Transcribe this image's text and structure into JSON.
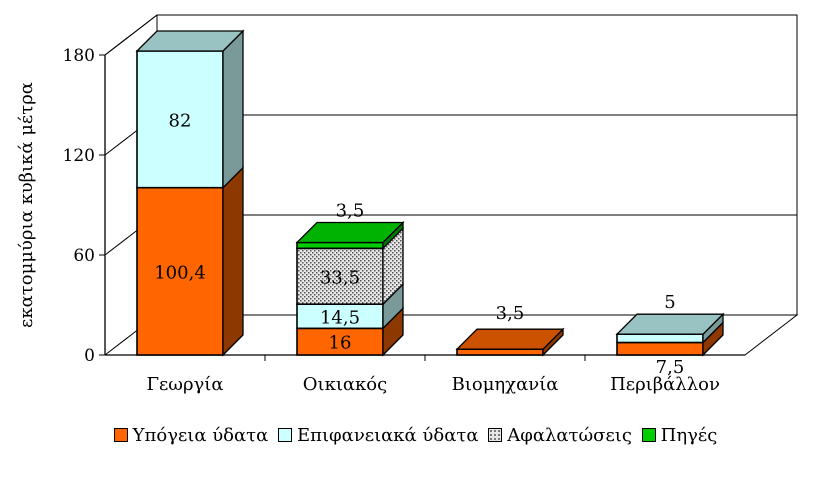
{
  "chart_data": {
    "type": "bar",
    "stacked": true,
    "style": "3d",
    "title": "",
    "xlabel": "",
    "ylabel": "εκατομμύρια κυβικά μέτρα",
    "ylim": [
      0,
      180
    ],
    "yticks": [
      "0",
      "60",
      "120",
      "180"
    ],
    "grid": true,
    "legend_position": "bottom",
    "categories": [
      "Γεωργία",
      "Οικιακός",
      "Βιομηχανία",
      "Περιβάλλον"
    ],
    "series": [
      {
        "name": "Υπόγεια ύδατα",
        "color": "#ff6600",
        "values": [
          100.4,
          16,
          3.5,
          7.5
        ],
        "labels": [
          "100,4",
          "16",
          "3,5",
          "7,5"
        ]
      },
      {
        "name": "Επιφανειακά ύδατα",
        "color": "#ccffff",
        "values": [
          82,
          14.5,
          0,
          5
        ],
        "labels": [
          "82",
          "14,5",
          "",
          "5"
        ]
      },
      {
        "name": "Αφαλατώσεις",
        "color": "#d9d9d9",
        "pattern": "dotted",
        "values": [
          0,
          33.5,
          0,
          0
        ],
        "labels": [
          "",
          "33,5",
          "",
          ""
        ]
      },
      {
        "name": "Πηγές",
        "color": "#00cc00",
        "values": [
          0,
          3.5,
          0,
          0
        ],
        "labels": [
          "",
          "3,5",
          "",
          ""
        ]
      }
    ]
  }
}
